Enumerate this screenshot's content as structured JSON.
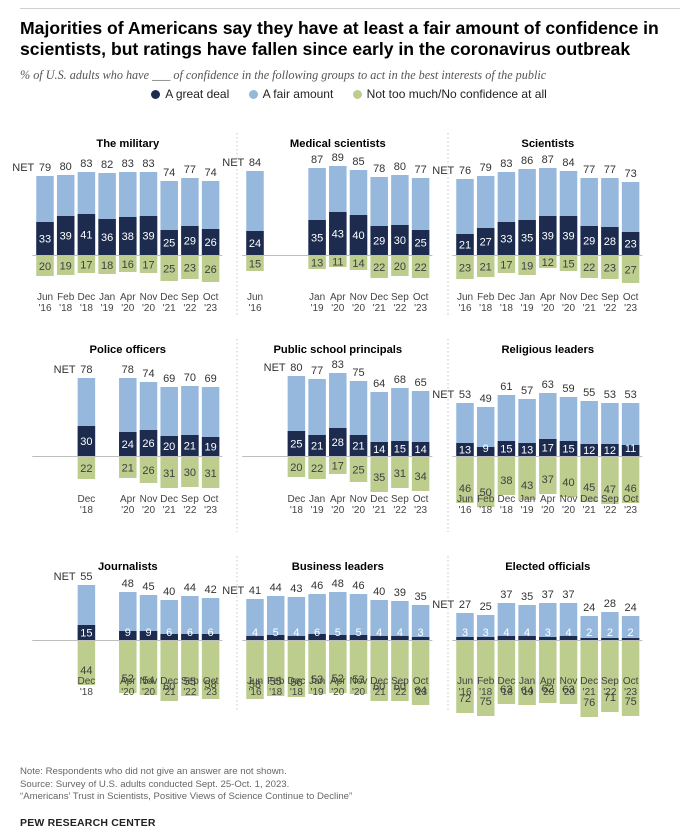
{
  "title": "Majorities of Americans say they have at least a fair amount of confidence in scientists, but ratings have fallen since early in the coronavirus outbreak",
  "subtitle": "% of U.S. adults who have ___ of confidence in the following groups to act in the best interests of the public",
  "legend": [
    {
      "label": "A great deal",
      "color": "#1c2b4e"
    },
    {
      "label": "A fair amount",
      "color": "#97b8dd"
    },
    {
      "label": "Not too much/No confidence at all",
      "color": "#bccd8e"
    }
  ],
  "net_label": "NET",
  "footer": {
    "note": "Note: Respondents who did not give an answer are not shown.",
    "source": "Source: Survey of U.S. adults conducted Sept. 25-Oct. 1, 2023.",
    "report": "“Americans’ Trust in Scientists, Positive Views of Science Continue to Decline”",
    "brand": "PEW RESEARCH CENTER"
  },
  "chart_data": {
    "type": "bar",
    "slots": [
      [
        "Jun",
        "'16"
      ],
      [
        "Feb",
        "'18"
      ],
      [
        "Dec",
        "'18"
      ],
      [
        "Jan",
        "'19"
      ],
      [
        "Apr",
        "'20"
      ],
      [
        "Nov",
        "'20"
      ],
      [
        "Dec",
        "'21"
      ],
      [
        "Sep",
        "'22"
      ],
      [
        "Oct",
        "'23"
      ]
    ],
    "panels": [
      {
        "title": "The military",
        "slots": [
          0,
          1,
          2,
          3,
          4,
          5,
          6,
          7,
          8
        ],
        "great": [
          33,
          39,
          41,
          36,
          38,
          39,
          25,
          29,
          26
        ],
        "fair_net": [
          79,
          80,
          83,
          82,
          83,
          83,
          74,
          77,
          74
        ],
        "not": [
          20,
          19,
          17,
          18,
          16,
          17,
          25,
          23,
          26
        ]
      },
      {
        "title": "Medical scientists",
        "slots": [
          0,
          3,
          4,
          5,
          6,
          7,
          8
        ],
        "great": [
          24,
          35,
          43,
          40,
          29,
          30,
          25
        ],
        "fair_net": [
          84,
          87,
          89,
          85,
          78,
          80,
          77
        ],
        "not": [
          15,
          13,
          11,
          14,
          22,
          20,
          22
        ]
      },
      {
        "title": "Scientists",
        "slots": [
          0,
          1,
          2,
          3,
          4,
          5,
          6,
          7,
          8
        ],
        "great": [
          21,
          27,
          33,
          35,
          39,
          39,
          29,
          28,
          23
        ],
        "fair_net": [
          76,
          79,
          83,
          86,
          87,
          84,
          77,
          77,
          73
        ],
        "not": [
          23,
          21,
          17,
          19,
          12,
          15,
          22,
          23,
          27
        ]
      },
      {
        "title": "Police officers",
        "slots": [
          2,
          4,
          5,
          6,
          7,
          8
        ],
        "great": [
          30,
          24,
          26,
          20,
          21,
          19
        ],
        "fair_net": [
          78,
          78,
          74,
          69,
          70,
          69
        ],
        "not": [
          22,
          21,
          26,
          31,
          30,
          31
        ]
      },
      {
        "title": "Public school principals",
        "slots": [
          2,
          3,
          4,
          5,
          6,
          7,
          8
        ],
        "great": [
          25,
          21,
          28,
          21,
          14,
          15,
          14
        ],
        "fair_net": [
          80,
          77,
          83,
          75,
          64,
          68,
          65
        ],
        "not": [
          20,
          22,
          17,
          25,
          35,
          31,
          34
        ]
      },
      {
        "title": "Religious leaders",
        "slots": [
          0,
          1,
          2,
          3,
          4,
          5,
          6,
          7,
          8
        ],
        "great": [
          13,
          9,
          15,
          13,
          17,
          15,
          12,
          12,
          11
        ],
        "fair_net": [
          53,
          49,
          61,
          57,
          63,
          59,
          55,
          53,
          53
        ],
        "not": [
          46,
          50,
          38,
          43,
          37,
          40,
          45,
          47,
          46
        ]
      },
      {
        "title": "Journalists",
        "slots": [
          2,
          4,
          5,
          6,
          7,
          8
        ],
        "great": [
          15,
          9,
          9,
          6,
          6,
          6
        ],
        "fair_net": [
          55,
          48,
          45,
          40,
          44,
          42
        ],
        "not": [
          44,
          52,
          54,
          60,
          55,
          58
        ]
      },
      {
        "title": "Business leaders",
        "slots": [
          0,
          1,
          2,
          3,
          4,
          5,
          6,
          7,
          8
        ],
        "great": [
          4,
          5,
          4,
          6,
          5,
          5,
          4,
          4,
          3
        ],
        "fair_net": [
          41,
          44,
          43,
          46,
          48,
          46,
          40,
          39,
          35
        ],
        "not": [
          58,
          55,
          56,
          53,
          52,
          53,
          60,
          60,
          64
        ]
      },
      {
        "title": "Elected officials",
        "slots": [
          0,
          1,
          2,
          3,
          4,
          5,
          6,
          7,
          8
        ],
        "great": [
          3,
          3,
          4,
          4,
          3,
          4,
          2,
          2,
          2
        ],
        "fair_net": [
          27,
          25,
          37,
          35,
          37,
          37,
          24,
          28,
          24
        ],
        "not": [
          72,
          75,
          63,
          64,
          62,
          63,
          76,
          71,
          75
        ]
      }
    ]
  }
}
